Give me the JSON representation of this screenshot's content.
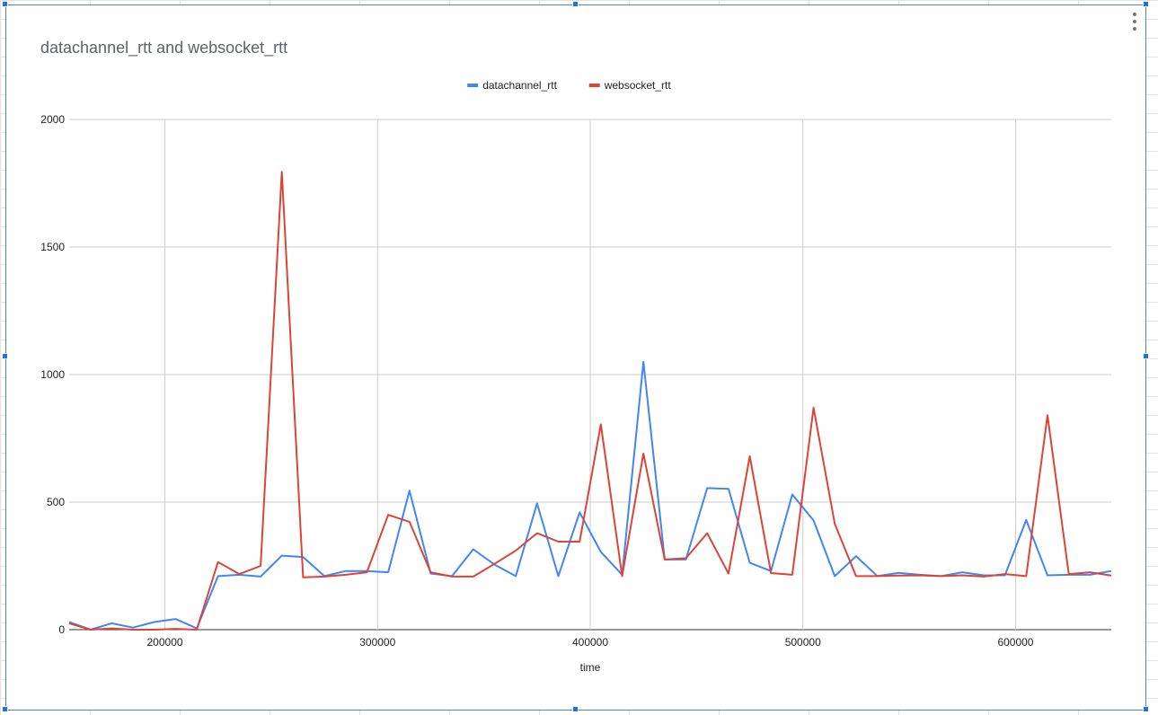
{
  "chart_data": {
    "type": "line",
    "title": "datachannel_rtt and websocket_rtt",
    "xlabel": "time",
    "ylabel": "",
    "xlim": [
      155000,
      645000
    ],
    "ylim": [
      0,
      2000
    ],
    "xticks": [
      200000,
      300000,
      400000,
      500000,
      600000
    ],
    "yticks": [
      0,
      500,
      1000,
      1500,
      2000
    ],
    "grid": true,
    "legend_position": "top-center",
    "x": [
      155000,
      165000,
      175000,
      185000,
      195000,
      205000,
      215000,
      225000,
      235000,
      245000,
      255000,
      265000,
      275000,
      285000,
      295000,
      305000,
      315000,
      325000,
      335000,
      345000,
      355000,
      365000,
      375000,
      385000,
      395000,
      405000,
      415000,
      425000,
      435000,
      445000,
      455000,
      465000,
      475000,
      485000,
      495000,
      505000,
      515000,
      525000,
      535000,
      545000,
      555000,
      565000,
      575000,
      585000,
      595000,
      605000,
      615000,
      625000,
      635000,
      645000
    ],
    "series": [
      {
        "name": "datachannel_rtt",
        "color": "#4285f4",
        "values": [
          30,
          0,
          25,
          8,
          30,
          42,
          5,
          210,
          215,
          208,
          290,
          285,
          210,
          230,
          230,
          225,
          545,
          220,
          210,
          315,
          255,
          210,
          495,
          210,
          460,
          305,
          215,
          1050,
          275,
          275,
          555,
          552,
          262,
          230,
          530,
          428,
          210,
          288,
          210,
          223,
          215,
          210,
          225,
          213,
          213,
          430,
          213,
          215,
          215,
          230
        ]
      },
      {
        "name": "websocket_rtt",
        "color": "#db4437",
        "values": [
          25,
          0,
          5,
          0,
          0,
          3,
          0,
          265,
          218,
          250,
          1795,
          205,
          208,
          215,
          225,
          450,
          423,
          225,
          208,
          208,
          258,
          310,
          378,
          345,
          345,
          805,
          210,
          690,
          275,
          280,
          378,
          220,
          680,
          222,
          215,
          870,
          415,
          210,
          210,
          212,
          213,
          210,
          213,
          208,
          218,
          210,
          840,
          218,
          225,
          212
        ]
      }
    ]
  }
}
